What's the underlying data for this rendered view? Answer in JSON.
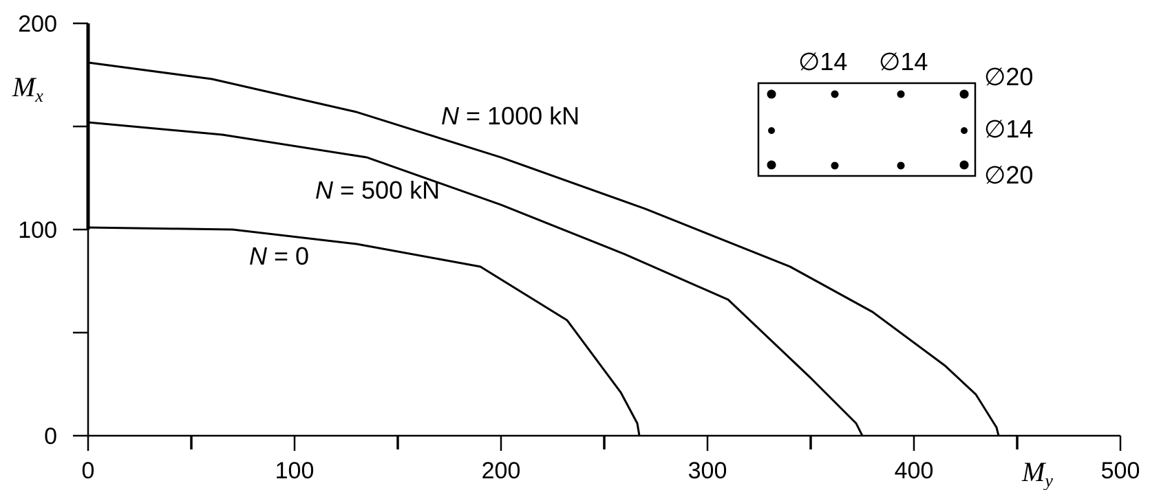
{
  "chart_data": {
    "type": "line",
    "title": "",
    "xlabel": {
      "main": "M",
      "sub": "y"
    },
    "ylabel": {
      "main": "M",
      "sub": "x"
    },
    "xlim": [
      0,
      500
    ],
    "ylim": [
      0,
      200
    ],
    "x_ticks": [
      0,
      100,
      200,
      300,
      400,
      500
    ],
    "y_ticks": [
      0,
      100,
      200
    ],
    "x_minor_ticks": [
      50,
      150,
      250,
      350,
      450
    ],
    "y_minor_ticks": [
      50,
      150
    ],
    "grid": false,
    "series": [
      {
        "label": {
          "prefix": "N",
          "text": " = 0"
        },
        "points": [
          [
            0,
            101
          ],
          [
            70,
            100
          ],
          [
            130,
            93
          ],
          [
            190,
            82
          ],
          [
            232,
            56
          ],
          [
            258,
            21
          ],
          [
            266,
            6
          ],
          [
            267,
            0
          ]
        ]
      },
      {
        "label": {
          "prefix": "N",
          "text": " = 500 kN"
        },
        "points": [
          [
            0,
            152
          ],
          [
            65,
            146
          ],
          [
            135,
            135
          ],
          [
            200,
            112
          ],
          [
            260,
            88
          ],
          [
            310,
            66
          ],
          [
            350,
            28
          ],
          [
            372,
            6
          ],
          [
            375,
            0
          ]
        ]
      },
      {
        "label": {
          "prefix": "N",
          "text": " = 1000 kN"
        },
        "points": [
          [
            0,
            181
          ],
          [
            60,
            173
          ],
          [
            130,
            157
          ],
          [
            200,
            135
          ],
          [
            270,
            110
          ],
          [
            340,
            82
          ],
          [
            380,
            60
          ],
          [
            415,
            34
          ],
          [
            430,
            20
          ],
          [
            440,
            4
          ],
          [
            441,
            0
          ]
        ]
      }
    ],
    "inset": {
      "top_labels": [
        "∅14",
        "∅14"
      ],
      "side_labels": [
        "∅20",
        "∅14",
        "∅20"
      ]
    }
  }
}
